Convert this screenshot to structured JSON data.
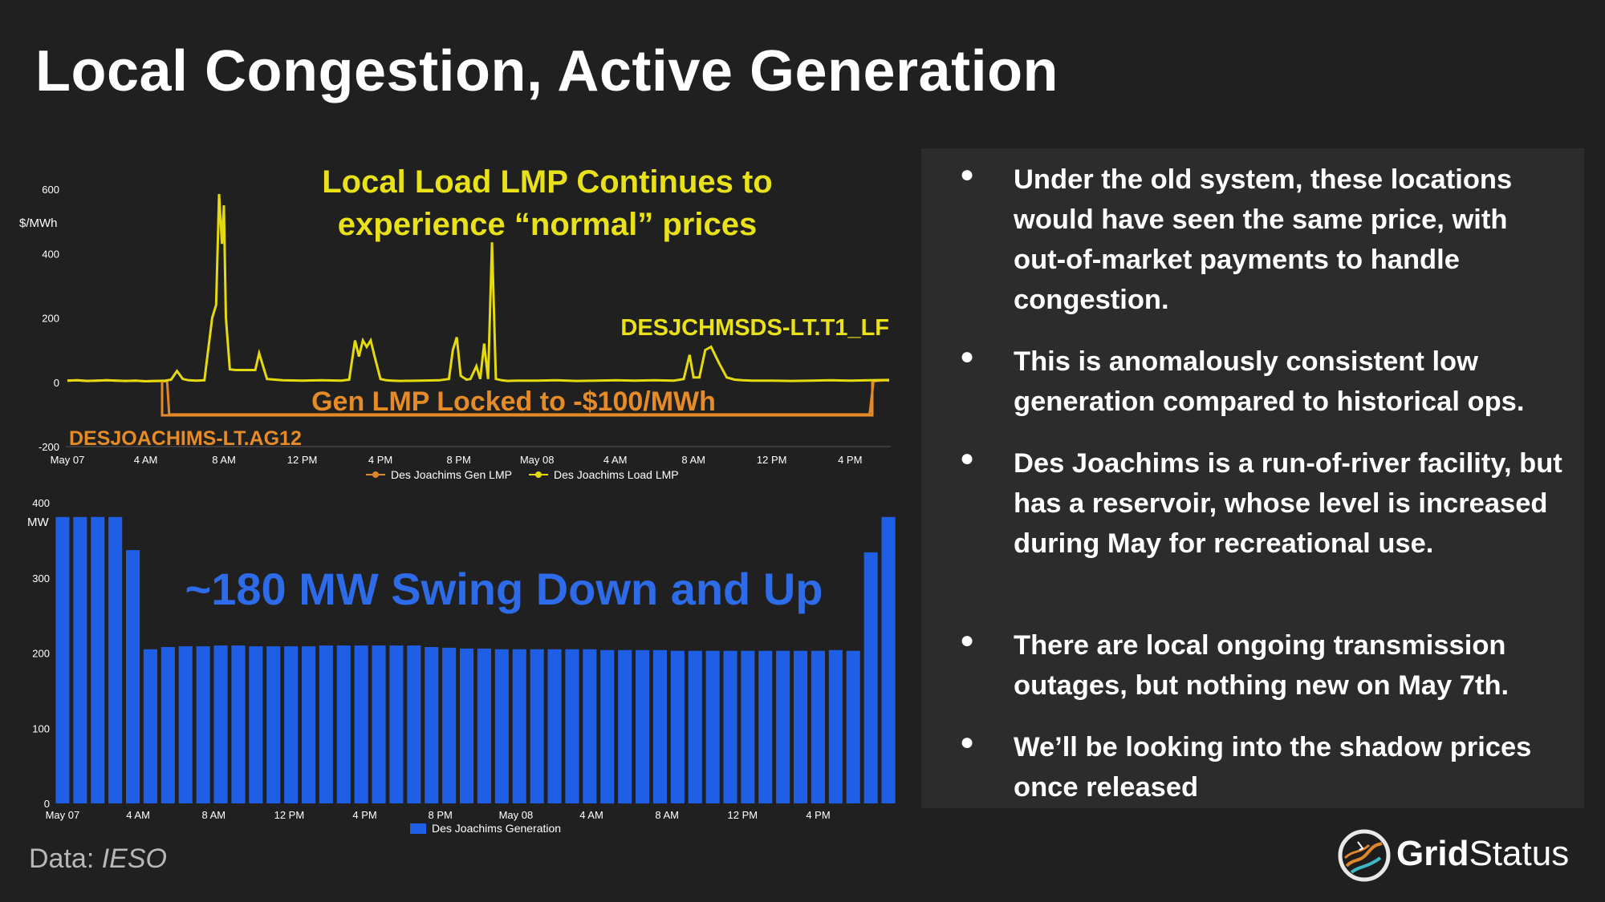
{
  "title": "Local Congestion, Active Generation",
  "colors": {
    "background": "#202020",
    "panel": "#2c2c2c",
    "load_lmp": "#e5d90f",
    "gen_lmp": "#e0862a",
    "generation": "#1f5fe6",
    "annotation_yellow": "#e9e21a",
    "annotation_orange": "#e58b27",
    "annotation_blue": "#2d6be8"
  },
  "chart_data": [
    {
      "type": "line",
      "ylabel": "$/MWh",
      "ylim": [
        -200,
        600
      ],
      "yticks": [
        "600",
        "400",
        "200",
        "0",
        "-200"
      ],
      "xticks": [
        "May 07",
        "4 AM",
        "8 AM",
        "12 PM",
        "4 PM",
        "8 PM",
        "May 08",
        "4 AM",
        "8 AM",
        "12 PM",
        "4 PM"
      ],
      "x_range_hours": [
        0,
        42
      ],
      "legend": [
        {
          "name": "Des Joachims Gen LMP",
          "color": "#e0862a"
        },
        {
          "name": "Des Joachims Load LMP",
          "color": "#e5d90f"
        }
      ],
      "series": [
        {
          "name": "Des Joachims Load LMP",
          "x": [
            0,
            0.5,
            1,
            1.5,
            2,
            2.5,
            3,
            3.5,
            4,
            4.5,
            5,
            5.3,
            5.6,
            5.9,
            6.2,
            6.6,
            7,
            7.4,
            7.6,
            7.75,
            7.9,
            8.0,
            8.1,
            8.3,
            8.6,
            9,
            9.4,
            9.6,
            9.8,
            10.2,
            11,
            12,
            13,
            14,
            14.4,
            14.7,
            14.9,
            15.1,
            15.3,
            15.5,
            15.7,
            16.0,
            16.3,
            16.6,
            17,
            18,
            19,
            19.5,
            19.7,
            19.9,
            20.1,
            20.4,
            20.6,
            20.9,
            21.1,
            21.3,
            21.5,
            21.7,
            21.9,
            22.2,
            22.5,
            23,
            24,
            25,
            26,
            27,
            28,
            29,
            30,
            31,
            31.5,
            31.8,
            32,
            32.3,
            32.6,
            32.9,
            33.3,
            33.7,
            34.1,
            34.5,
            35,
            36,
            37,
            38,
            39,
            40,
            41,
            42
          ],
          "y": [
            5,
            6,
            4,
            5,
            6,
            5,
            4,
            5,
            3,
            4,
            5,
            8,
            35,
            10,
            6,
            5,
            6,
            200,
            240,
            585,
            430,
            550,
            200,
            40,
            38,
            38,
            38,
            38,
            90,
            10,
            6,
            5,
            6,
            5,
            8,
            130,
            80,
            130,
            110,
            130,
            80,
            10,
            6,
            5,
            4,
            5,
            6,
            10,
            100,
            140,
            20,
            8,
            10,
            50,
            10,
            120,
            10,
            435,
            10,
            6,
            4,
            5,
            5,
            6,
            4,
            5,
            6,
            5,
            6,
            5,
            10,
            85,
            15,
            15,
            100,
            110,
            60,
            15,
            8,
            6,
            5,
            5,
            4,
            5,
            6,
            5,
            6,
            7
          ]
        },
        {
          "name": "Des Joachims Gen LMP",
          "x": [
            0,
            0.5,
            1,
            1.5,
            2,
            2.5,
            3,
            3.5,
            4,
            4.5,
            5,
            5.1,
            5.2,
            5.6,
            6,
            7,
            7.5,
            8,
            9,
            12,
            16,
            20,
            24,
            28,
            32,
            36,
            40.5,
            41,
            41.2,
            41.5,
            41.8,
            42
          ],
          "y": [
            5,
            6,
            4,
            5,
            6,
            5,
            4,
            5,
            3,
            4,
            3,
            2,
            -100,
            -100,
            -100,
            -100,
            -100,
            -100,
            -100,
            -100,
            -100,
            -100,
            -100,
            -100,
            -100,
            -100,
            -100,
            -100,
            3,
            5,
            6,
            5
          ]
        }
      ],
      "annotations": {
        "title_line1": "Local Load LMP Continues to",
        "title_line2": "experience “normal” prices",
        "load_node": "DESJCHMSDS-LT.T1_LF",
        "gen_locked": "Gen LMP Locked to -$100/MWh",
        "gen_node": "DESJOACHIMS-LT.AG12"
      }
    },
    {
      "type": "bar",
      "ylabel": "MW",
      "ylim": [
        0,
        400
      ],
      "yticks": [
        "400",
        "300",
        "200",
        "100",
        "0"
      ],
      "xticks": [
        "May 07",
        "4 AM",
        "8 AM",
        "12 PM",
        "4 PM",
        "8 PM",
        "May 08",
        "4 AM",
        "8 AM",
        "12 PM",
        "4 PM"
      ],
      "legend": [
        {
          "name": "Des Joachims Generation",
          "color": "#1f5fe6"
        }
      ],
      "series": [
        {
          "name": "Des Joachims Generation",
          "values": [
            381,
            381,
            381,
            381,
            337,
            205,
            208,
            209,
            209,
            210,
            210,
            209,
            209,
            209,
            209,
            210,
            210,
            210,
            210,
            210,
            210,
            208,
            207,
            206,
            206,
            205,
            205,
            205,
            205,
            205,
            205,
            204,
            204,
            204,
            204,
            203,
            203,
            203,
            203,
            203,
            203,
            203,
            203,
            203,
            204,
            203,
            334,
            381
          ]
        }
      ],
      "annotation": "~180 MW Swing Down and Up"
    }
  ],
  "bullets": [
    {
      "text": "Under the old system, these locations would have seen the same price, with out-of-market payments to handle congestion."
    },
    {
      "text": "This is anomalously consistent low generation compared to historical ops."
    },
    {
      "text": "Des Joachims is a run-of-river facility, but has a reservoir, whose level is increased during May for recreational use."
    },
    {
      "text": "There are local ongoing transmission outages, but nothing new on May 7th."
    },
    {
      "text": "We’ll be looking into the shadow prices once released"
    }
  ],
  "bullet_glyph": "●",
  "footer": {
    "data_label": "Data:",
    "data_source": "IESO",
    "logo_bold": "Grid",
    "logo_regular": "Status",
    "logo_icon": "grid-status-logo-icon"
  }
}
